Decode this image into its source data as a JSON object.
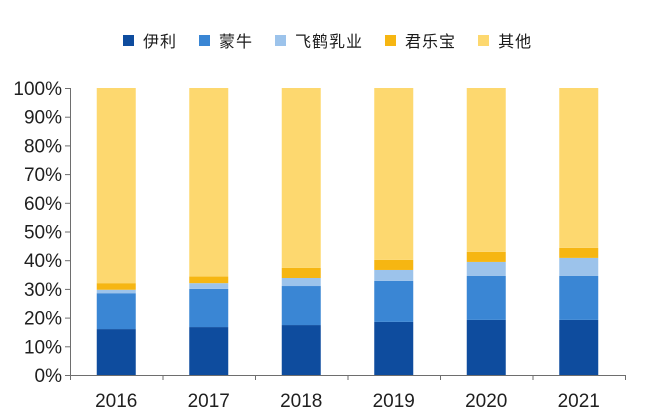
{
  "chart_data": {
    "type": "bar",
    "stacked": true,
    "percent_stacked": true,
    "categories": [
      "2016",
      "2017",
      "2018",
      "2019",
      "2020",
      "2021"
    ],
    "series": [
      {
        "name": "伊利",
        "color": "#0e4c9e",
        "values": [
          16.0,
          16.7,
          17.4,
          18.5,
          19.2,
          19.2
        ]
      },
      {
        "name": "蒙牛",
        "color": "#3a86d4",
        "values": [
          12.5,
          13.3,
          13.6,
          14.3,
          15.3,
          15.3
        ]
      },
      {
        "name": "飞鹤乳业",
        "color": "#9cc3eb",
        "values": [
          1.2,
          2.0,
          2.8,
          3.8,
          4.9,
          6.3
        ]
      },
      {
        "name": "君乐宝",
        "color": "#f6b612",
        "values": [
          2.3,
          2.3,
          3.5,
          3.5,
          3.5,
          3.5
        ]
      },
      {
        "name": "其他",
        "color": "#fdd86f",
        "values": [
          68.0,
          65.7,
          62.7,
          59.9,
          57.1,
          55.7
        ]
      }
    ],
    "yticks": [
      "0%",
      "10%",
      "20%",
      "30%",
      "40%",
      "50%",
      "60%",
      "70%",
      "80%",
      "90%",
      "100%"
    ],
    "ylim": [
      0,
      100
    ],
    "legend_position": "top",
    "grid": false
  }
}
